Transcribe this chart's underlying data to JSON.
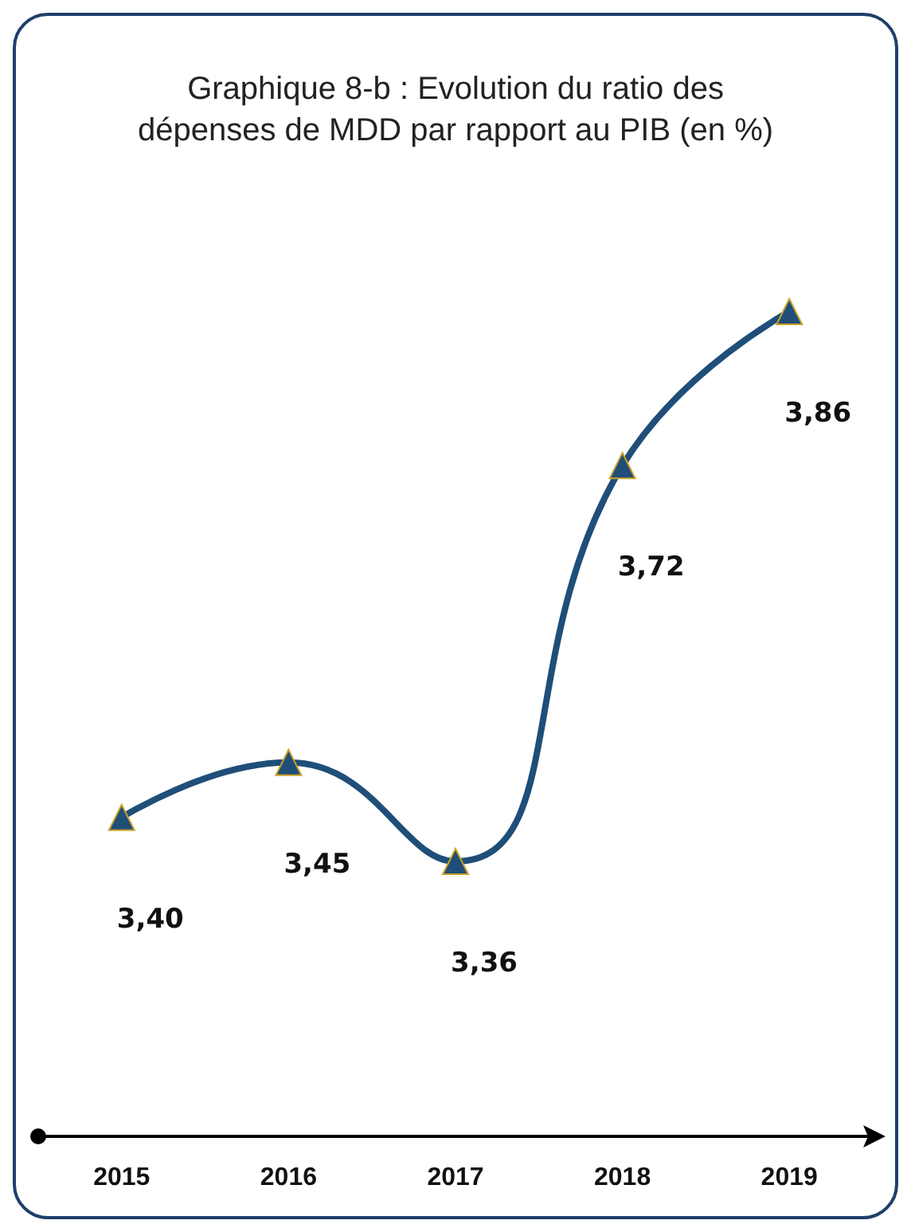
{
  "chart_data": {
    "type": "line",
    "title": "Graphique 8-b : Evolution du ratio des\ndépenses de MDD par rapport au PIB (en %)",
    "categories": [
      "2015",
      "2016",
      "2017",
      "2018",
      "2019"
    ],
    "series": [
      {
        "color": "#1f4e79",
        "values": [
          3.4,
          3.45,
          3.36,
          3.72,
          3.86
        ],
        "value_labels": [
          "3,40",
          "3,45",
          "3,36",
          "3,72",
          "3,86"
        ]
      }
    ],
    "marker": "triangle",
    "grid": false,
    "tick_labels": "x",
    "line_style": "solid"
  }
}
